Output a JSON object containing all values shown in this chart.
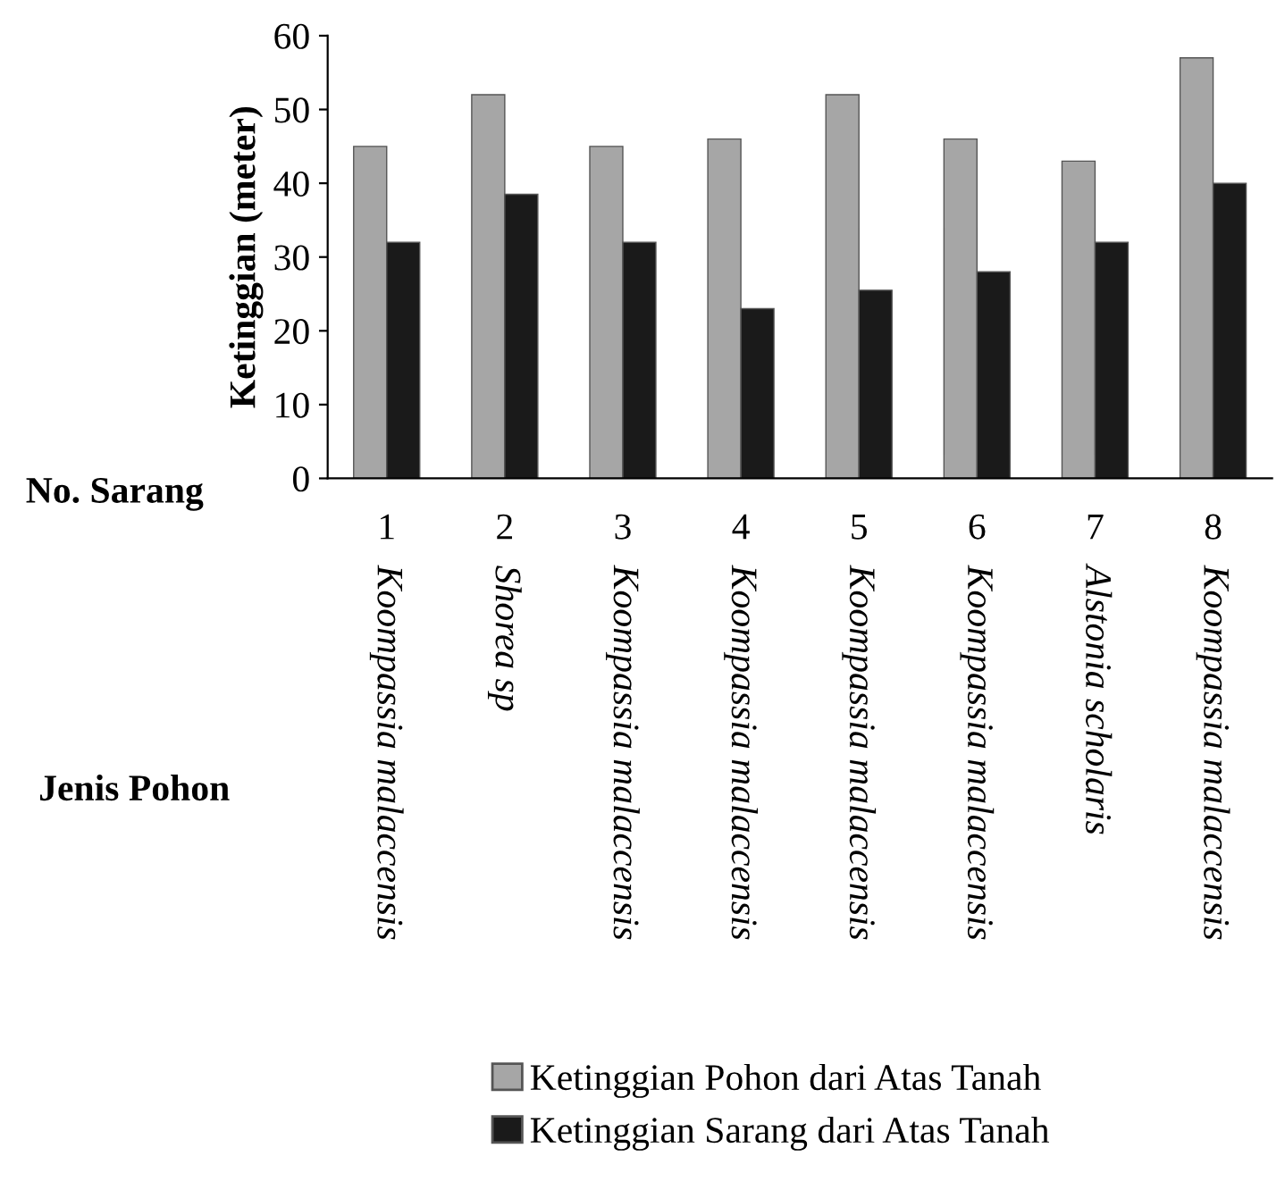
{
  "chart_data": {
    "type": "bar",
    "ylabel": "Ketinggian (meter)",
    "categories": [
      "1",
      "2",
      "3",
      "4",
      "5",
      "6",
      "7",
      "8"
    ],
    "series": [
      {
        "name": "Ketinggian Pohon dari Atas Tanah",
        "color": "#a6a6a6",
        "values": [
          45,
          52,
          45,
          46,
          52,
          46,
          43,
          57
        ]
      },
      {
        "name": "Ketinggian Sarang dari Atas Tanah",
        "color": "#1a1a1a",
        "values": [
          32,
          38.5,
          32,
          23,
          25.5,
          28,
          32,
          40
        ]
      }
    ],
    "ylim": [
      0,
      60
    ],
    "yticks": [
      0,
      10,
      20,
      30,
      40,
      50,
      60
    ],
    "grid": false,
    "legend": "bottom",
    "annotations": [
      "No. Sarang",
      "Jenis Pohon",
      "Koompassia malaccensis",
      "Shorea sp",
      "Koompassia malaccensis",
      "Koompassia malaccensis",
      "Koompassia malaccensis",
      "Koompassia malaccensis",
      "Alstonia scholaris",
      "Koompassia malaccensis"
    ]
  }
}
